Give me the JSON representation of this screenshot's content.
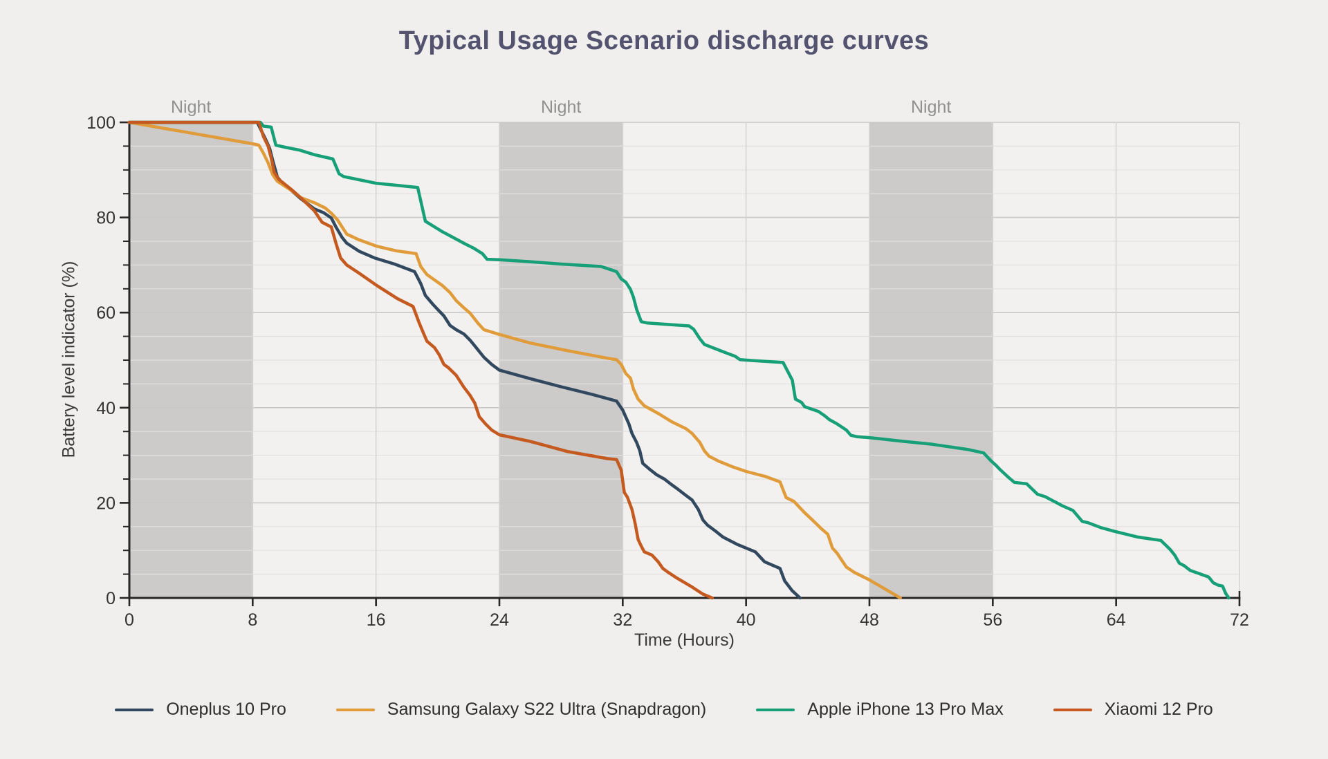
{
  "title": "Typical Usage Scenario discharge curves",
  "colors": {
    "figure_background": "#f0efed",
    "plot_background": "#f2f1ef",
    "night_band": "#cccbca",
    "grid_minor": "#e2e1df",
    "grid_major": "#c9c8c6",
    "grid_vertical": "#d5d4d2",
    "axis_spine": "#262626",
    "tick_label": "#333333",
    "night_label": "#909090",
    "title_color": "#535370"
  },
  "chart_data": {
    "type": "line",
    "title": "Typical Usage Scenario discharge curves",
    "xlabel": "Time (Hours)",
    "ylabel": "Battery level indicator (%)",
    "xlim": [
      0,
      72
    ],
    "ylim": [
      0,
      100
    ],
    "x_ticks": [
      0,
      8,
      16,
      24,
      32,
      40,
      48,
      56,
      64,
      72
    ],
    "y_ticks": [
      0,
      20,
      40,
      60,
      80,
      100
    ],
    "y_minor_step": 5,
    "grid": true,
    "legend_position": "bottom",
    "night_bands": [
      {
        "label": "Night",
        "from": 0,
        "to": 8
      },
      {
        "label": "Night",
        "from": 24,
        "to": 32
      },
      {
        "label": "Night",
        "from": 48,
        "to": 56
      }
    ],
    "series": [
      {
        "name": "Oneplus 10 Pro",
        "color": "#31485e",
        "points": [
          [
            0,
            100
          ],
          [
            7.5,
            100
          ],
          [
            8.3,
            100
          ],
          [
            8.6,
            98
          ],
          [
            8.9,
            96
          ],
          [
            9.1,
            94.5
          ],
          [
            9.3,
            92
          ],
          [
            9.6,
            88.5
          ],
          [
            9.9,
            87.3
          ],
          [
            10.5,
            85.7
          ],
          [
            11.1,
            84
          ],
          [
            12,
            81.8
          ],
          [
            12.6,
            81
          ],
          [
            13.1,
            79.9
          ],
          [
            13.4,
            78
          ],
          [
            13.8,
            75.8
          ],
          [
            14.1,
            74.6
          ],
          [
            14.9,
            72.9
          ],
          [
            15.9,
            71.5
          ],
          [
            17.2,
            70.2
          ],
          [
            18.5,
            68.6
          ],
          [
            18.9,
            66.1
          ],
          [
            19.2,
            63.6
          ],
          [
            19.7,
            61.7
          ],
          [
            20.1,
            60.3
          ],
          [
            20.4,
            59.3
          ],
          [
            20.8,
            57.3
          ],
          [
            21.2,
            56.4
          ],
          [
            21.7,
            55.5
          ],
          [
            22.1,
            54.2
          ],
          [
            22.5,
            52.6
          ],
          [
            23,
            50.6
          ],
          [
            23.5,
            49.1
          ],
          [
            24,
            47.9
          ],
          [
            26,
            46.1
          ],
          [
            28,
            44.4
          ],
          [
            30,
            42.8
          ],
          [
            31.6,
            41.4
          ],
          [
            32,
            39.5
          ],
          [
            32.4,
            36.6
          ],
          [
            32.6,
            34.6
          ],
          [
            32.9,
            32.7
          ],
          [
            33.1,
            31
          ],
          [
            33.3,
            28.3
          ],
          [
            33.8,
            26.9
          ],
          [
            34.2,
            25.9
          ],
          [
            34.7,
            25
          ],
          [
            35.1,
            24
          ],
          [
            35.6,
            22.8
          ],
          [
            36,
            21.8
          ],
          [
            36.5,
            20.6
          ],
          [
            36.9,
            18.6
          ],
          [
            37.2,
            16.4
          ],
          [
            37.5,
            15.3
          ],
          [
            38,
            14.1
          ],
          [
            38.5,
            12.8
          ],
          [
            39.4,
            11.3
          ],
          [
            40.6,
            9.7
          ],
          [
            41.2,
            7.6
          ],
          [
            42.2,
            6.2
          ],
          [
            42.5,
            3.6
          ],
          [
            43,
            1.5
          ],
          [
            43.5,
            0
          ]
        ]
      },
      {
        "name": "Samsung Galaxy S22 Ultra (Snapdragon)",
        "color": "#e09c3a",
        "points": [
          [
            0,
            100
          ],
          [
            8,
            95.5
          ],
          [
            8.4,
            95.2
          ],
          [
            8.7,
            93.5
          ],
          [
            9,
            91.5
          ],
          [
            9.3,
            89
          ],
          [
            9.6,
            87.6
          ],
          [
            10.5,
            85.7
          ],
          [
            11.1,
            84.2
          ],
          [
            12,
            83.1
          ],
          [
            12.7,
            82
          ],
          [
            13.1,
            80.9
          ],
          [
            13.5,
            79.5
          ],
          [
            14.1,
            76.5
          ],
          [
            14.9,
            75.3
          ],
          [
            16,
            74
          ],
          [
            17.3,
            73
          ],
          [
            18.6,
            72.4
          ],
          [
            18.9,
            69.7
          ],
          [
            19.3,
            68
          ],
          [
            20.3,
            65.7
          ],
          [
            20.8,
            64.2
          ],
          [
            21.2,
            62.5
          ],
          [
            21.7,
            61
          ],
          [
            22.1,
            59.9
          ],
          [
            22.6,
            57.8
          ],
          [
            23,
            56.4
          ],
          [
            24,
            55.4
          ],
          [
            26,
            53.6
          ],
          [
            28.4,
            52
          ],
          [
            31,
            50.4
          ],
          [
            31.6,
            50.1
          ],
          [
            31.9,
            49.1
          ],
          [
            32.2,
            47.2
          ],
          [
            32.5,
            46.2
          ],
          [
            32.7,
            43.9
          ],
          [
            33,
            41.8
          ],
          [
            33.4,
            40.4
          ],
          [
            34.3,
            38.8
          ],
          [
            35.2,
            37
          ],
          [
            36.1,
            35.6
          ],
          [
            36.5,
            34.6
          ],
          [
            37,
            32.7
          ],
          [
            37.3,
            30.9
          ],
          [
            37.6,
            29.8
          ],
          [
            38.2,
            28.8
          ],
          [
            39.1,
            27.6
          ],
          [
            40,
            26.6
          ],
          [
            41.3,
            25.5
          ],
          [
            42.2,
            24.4
          ],
          [
            42.6,
            21.1
          ],
          [
            43.1,
            20.3
          ],
          [
            43.8,
            17.9
          ],
          [
            44.3,
            16.4
          ],
          [
            44.9,
            14.5
          ],
          [
            45.3,
            13.4
          ],
          [
            45.6,
            10.5
          ],
          [
            45.9,
            9.4
          ],
          [
            46.5,
            6.5
          ],
          [
            47,
            5.4
          ],
          [
            48,
            3.8
          ],
          [
            49,
            1.9
          ],
          [
            50,
            0
          ]
        ]
      },
      {
        "name": "Apple iPhone 13 Pro Max",
        "color": "#17a078",
        "points": [
          [
            0,
            100
          ],
          [
            8.5,
            100
          ],
          [
            8.7,
            99.2
          ],
          [
            9.2,
            99
          ],
          [
            9.5,
            95.2
          ],
          [
            10.2,
            94.7
          ],
          [
            11,
            94.2
          ],
          [
            12,
            93.2
          ],
          [
            13.2,
            92.3
          ],
          [
            13.6,
            89.2
          ],
          [
            13.9,
            88.6
          ],
          [
            14.8,
            88
          ],
          [
            16,
            87.2
          ],
          [
            17.2,
            86.8
          ],
          [
            18.7,
            86.3
          ],
          [
            19.2,
            79.2
          ],
          [
            20.3,
            77
          ],
          [
            21,
            75.8
          ],
          [
            21.8,
            74.4
          ],
          [
            22.3,
            73.6
          ],
          [
            22.9,
            72.4
          ],
          [
            23.2,
            71.2
          ],
          [
            24,
            71.1
          ],
          [
            26,
            70.7
          ],
          [
            28,
            70.2
          ],
          [
            30.6,
            69.7
          ],
          [
            31.6,
            68.6
          ],
          [
            31.9,
            67.1
          ],
          [
            32.2,
            66.4
          ],
          [
            32.5,
            64.9
          ],
          [
            32.7,
            63.2
          ],
          [
            32.9,
            60.7
          ],
          [
            33.2,
            58.1
          ],
          [
            33.6,
            57.8
          ],
          [
            36.3,
            57.2
          ],
          [
            36.6,
            56.5
          ],
          [
            37,
            54.5
          ],
          [
            37.3,
            53.3
          ],
          [
            38.4,
            51.9
          ],
          [
            39.3,
            50.8
          ],
          [
            39.6,
            50.1
          ],
          [
            40.5,
            49.9
          ],
          [
            42.4,
            49.5
          ],
          [
            43,
            45.8
          ],
          [
            43.2,
            41.8
          ],
          [
            43.6,
            41.1
          ],
          [
            43.8,
            40.2
          ],
          [
            44.7,
            39.2
          ],
          [
            45.1,
            38.3
          ],
          [
            45.4,
            37.5
          ],
          [
            45.9,
            36.6
          ],
          [
            46.5,
            35.3
          ],
          [
            46.8,
            34.2
          ],
          [
            47.2,
            33.9
          ],
          [
            48,
            33.7
          ],
          [
            50,
            33
          ],
          [
            52.1,
            32.3
          ],
          [
            54.4,
            31.2
          ],
          [
            55.4,
            30.5
          ],
          [
            55.9,
            28.8
          ],
          [
            56.2,
            27.9
          ],
          [
            56.5,
            26.9
          ],
          [
            57,
            25.4
          ],
          [
            57.4,
            24.3
          ],
          [
            58.2,
            24
          ],
          [
            58.9,
            21.8
          ],
          [
            59.4,
            21.3
          ],
          [
            60.5,
            19.4
          ],
          [
            61.2,
            18.4
          ],
          [
            61.8,
            16.1
          ],
          [
            62.2,
            15.8
          ],
          [
            63,
            14.8
          ],
          [
            63.9,
            14
          ],
          [
            65.4,
            12.8
          ],
          [
            66.9,
            12.1
          ],
          [
            67.5,
            10.2
          ],
          [
            67.8,
            9
          ],
          [
            68.1,
            7.3
          ],
          [
            68.4,
            6.8
          ],
          [
            68.8,
            5.8
          ],
          [
            69.4,
            5.1
          ],
          [
            70,
            4.4
          ],
          [
            70.3,
            3.2
          ],
          [
            70.6,
            2.7
          ],
          [
            70.9,
            2.5
          ],
          [
            71.1,
            1
          ],
          [
            71.3,
            0
          ]
        ]
      },
      {
        "name": "Xiaomi 12 Pro",
        "color": "#c45a20",
        "points": [
          [
            0,
            100
          ],
          [
            8.4,
            100
          ],
          [
            8.7,
            97
          ],
          [
            9,
            95
          ],
          [
            9.2,
            92.5
          ],
          [
            9.4,
            89.5
          ],
          [
            9.7,
            88
          ],
          [
            10.5,
            85.9
          ],
          [
            11.1,
            84.2
          ],
          [
            12,
            81.4
          ],
          [
            12.5,
            79
          ],
          [
            13.1,
            78
          ],
          [
            13.4,
            74.6
          ],
          [
            13.7,
            71.5
          ],
          [
            14.1,
            70
          ],
          [
            14.9,
            68.3
          ],
          [
            16,
            65.8
          ],
          [
            17.4,
            62.9
          ],
          [
            18.4,
            61.3
          ],
          [
            18.8,
            57.8
          ],
          [
            19.1,
            55.5
          ],
          [
            19.3,
            54
          ],
          [
            19.8,
            52.6
          ],
          [
            20.1,
            51.1
          ],
          [
            20.4,
            49.1
          ],
          [
            20.7,
            48.4
          ],
          [
            21.2,
            46.8
          ],
          [
            21.7,
            44.3
          ],
          [
            22.1,
            42.6
          ],
          [
            22.4,
            41
          ],
          [
            22.7,
            38.1
          ],
          [
            23.1,
            36.6
          ],
          [
            23.5,
            35.3
          ],
          [
            24,
            34.3
          ],
          [
            26,
            32.9
          ],
          [
            28.4,
            30.8
          ],
          [
            31,
            29.3
          ],
          [
            31.6,
            29.1
          ],
          [
            31.9,
            26.9
          ],
          [
            32.1,
            22.2
          ],
          [
            32.3,
            21.2
          ],
          [
            32.6,
            18.6
          ],
          [
            32.8,
            15.7
          ],
          [
            33,
            12.3
          ],
          [
            33.2,
            10.9
          ],
          [
            33.4,
            9.7
          ],
          [
            33.9,
            9
          ],
          [
            34.3,
            7.6
          ],
          [
            34.6,
            6.2
          ],
          [
            34.9,
            5.5
          ],
          [
            35.5,
            4.2
          ],
          [
            36.5,
            2.3
          ],
          [
            37.2,
            0.8
          ],
          [
            37.8,
            0
          ]
        ]
      }
    ]
  }
}
